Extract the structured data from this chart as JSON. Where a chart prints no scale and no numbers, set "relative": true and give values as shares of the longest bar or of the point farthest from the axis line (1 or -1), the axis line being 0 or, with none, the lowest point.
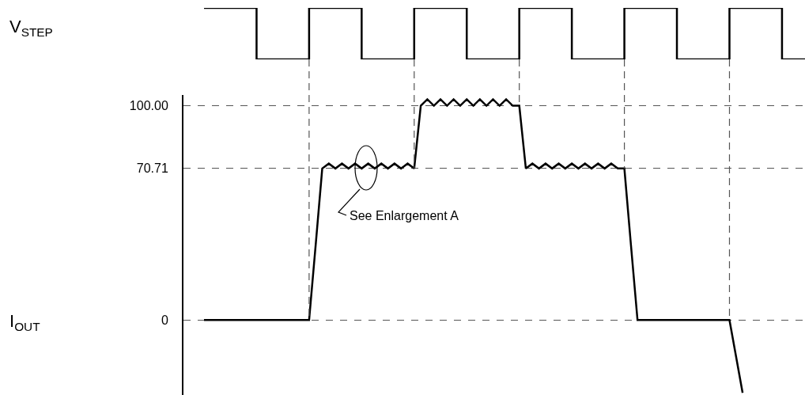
{
  "chart_data": [
    {
      "type": "step",
      "ylabel": "V$_{STEP}$",
      "relative": true,
      "tick_labels": false,
      "color": "#000000",
      "categories": [
        null,
        null,
        null,
        null,
        null,
        null,
        null,
        null,
        null,
        null,
        null,
        null
      ],
      "values": [
        1,
        0,
        1,
        0,
        1,
        0,
        1,
        0,
        1,
        0,
        1,
        0
      ]
    },
    {
      "type": "line",
      "ylabel": "I$_{OUT}$",
      "tick_labels": "y",
      "color": "#000000",
      "grid": "y",
      "categories": [
        null,
        null,
        null,
        null,
        null,
        null,
        null,
        null,
        null,
        null,
        null,
        null,
        null,
        null,
        null,
        null,
        null,
        null,
        null,
        null,
        null,
        null,
        null,
        null,
        null,
        null,
        null,
        null,
        null,
        null,
        null,
        null,
        null,
        null,
        null,
        null,
        null,
        null,
        null,
        null,
        null,
        null,
        null,
        null,
        null,
        null,
        null,
        null,
        null,
        null,
        null,
        null,
        null,
        null,
        null,
        null,
        null,
        null,
        null,
        null,
        null,
        null,
        null,
        null,
        null,
        null,
        null,
        null,
        null,
        null,
        null,
        null,
        null,
        null,
        null,
        null,
        null,
        null,
        null,
        null,
        null,
        null,
        null
      ],
      "values": [
        0,
        0,
        0,
        0,
        0,
        0,
        0,
        0,
        0,
        0,
        0,
        0,
        0,
        0,
        0,
        0,
        0,
        35,
        70.71,
        73,
        70.71,
        73,
        70.71,
        73,
        70.71,
        73,
        70.71,
        73,
        70.71,
        73,
        70.71,
        73,
        70.71,
        100,
        103,
        100,
        103,
        100,
        103,
        100,
        103,
        100,
        103,
        100,
        103,
        100,
        103,
        100,
        100,
        70.71,
        73,
        70.71,
        73,
        70.71,
        73,
        70.71,
        73,
        70.71,
        73,
        70.71,
        73,
        70.71,
        73,
        70.71,
        70.71,
        35,
        0,
        0,
        0,
        0,
        0,
        0,
        0,
        0,
        0,
        0,
        0,
        0,
        0,
        0,
        0,
        -17,
        -34
      ],
      "ylim": [
        -35,
        105
      ],
      "yticks": [
        0,
        70.71,
        {
          "value": 100,
          "label": "100.00"
        }
      ],
      "annotations": [
        "See Enlargement A"
      ]
    }
  ]
}
